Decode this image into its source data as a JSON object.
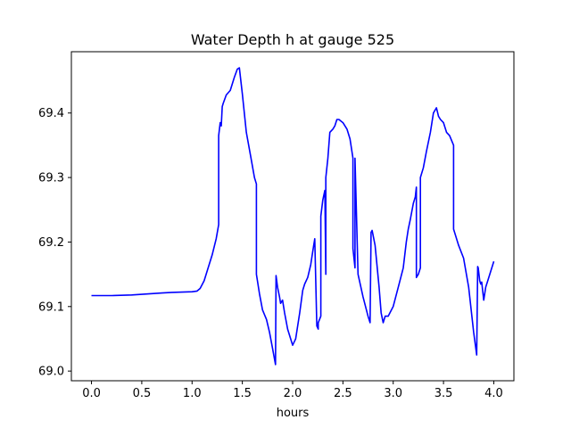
{
  "chart_data": {
    "type": "line",
    "title": "Water Depth h at gauge 525",
    "xlabel": "hours",
    "ylabel": "",
    "xlim": [
      -0.2,
      4.2
    ],
    "ylim": [
      68.985,
      69.495
    ],
    "x_ticks": [
      0.0,
      0.5,
      1.0,
      1.5,
      2.0,
      2.5,
      3.0,
      3.5,
      4.0
    ],
    "x_tick_labels": [
      "0.0",
      "0.5",
      "1.0",
      "1.5",
      "2.0",
      "2.5",
      "3.0",
      "3.5",
      "4.0"
    ],
    "y_ticks": [
      69.0,
      69.1,
      69.2,
      69.3,
      69.4
    ],
    "y_tick_labels": [
      "69.0",
      "69.1",
      "69.2",
      "69.3",
      "69.4"
    ],
    "grid": false,
    "series": [
      {
        "color": "#0000ff",
        "x": [
          0.0,
          0.2,
          0.4,
          0.6,
          0.7,
          0.8,
          1.0,
          1.05,
          1.08,
          1.12,
          1.16,
          1.2,
          1.24,
          1.265,
          1.265,
          1.28,
          1.29,
          1.3,
          1.31,
          1.34,
          1.38,
          1.42,
          1.45,
          1.47,
          1.5,
          1.54,
          1.58,
          1.62,
          1.64,
          1.64,
          1.67,
          1.7,
          1.74,
          1.77,
          1.8,
          1.83,
          1.835,
          1.85,
          1.87,
          1.88,
          1.9,
          1.92,
          1.95,
          2.0,
          2.03,
          2.07,
          2.1,
          2.12,
          2.15,
          2.18,
          2.2,
          2.22,
          2.24,
          2.255,
          2.255,
          2.28,
          2.28,
          2.3,
          2.32,
          2.33,
          2.33,
          2.35,
          2.37,
          2.4,
          2.42,
          2.44,
          2.46,
          2.5,
          2.54,
          2.57,
          2.6,
          2.6,
          2.62,
          2.62,
          2.65,
          2.7,
          2.75,
          2.77,
          2.78,
          2.79,
          2.82,
          2.86,
          2.88,
          2.9,
          2.92,
          2.95,
          3.0,
          3.05,
          3.1,
          3.13,
          3.15,
          3.17,
          3.2,
          3.22,
          3.23,
          3.23,
          3.25,
          3.27,
          3.27,
          3.3,
          3.33,
          3.37,
          3.4,
          3.43,
          3.45,
          3.47,
          3.5,
          3.53,
          3.56,
          3.6,
          3.6,
          3.65,
          3.7,
          3.75,
          3.8,
          3.83,
          3.84,
          3.845,
          3.86,
          3.87,
          3.88,
          3.9,
          3.92,
          3.94,
          3.97,
          4.0
        ],
        "y": [
          69.117,
          69.117,
          69.118,
          69.12,
          69.121,
          69.122,
          69.123,
          69.124,
          69.128,
          69.14,
          69.16,
          69.18,
          69.205,
          69.227,
          69.365,
          69.385,
          69.38,
          69.41,
          69.415,
          69.428,
          69.435,
          69.455,
          69.468,
          69.47,
          69.43,
          69.37,
          69.335,
          69.3,
          69.29,
          69.15,
          69.12,
          69.095,
          69.08,
          69.06,
          69.035,
          69.01,
          69.148,
          69.13,
          69.115,
          69.105,
          69.11,
          69.09,
          69.065,
          69.04,
          69.05,
          69.09,
          69.125,
          69.135,
          69.145,
          69.165,
          69.185,
          69.205,
          69.07,
          69.065,
          69.075,
          69.085,
          69.24,
          69.265,
          69.28,
          69.15,
          69.3,
          69.33,
          69.37,
          69.375,
          69.38,
          69.39,
          69.39,
          69.385,
          69.375,
          69.36,
          69.33,
          69.19,
          69.16,
          69.33,
          69.15,
          69.115,
          69.085,
          69.075,
          69.215,
          69.218,
          69.195,
          69.13,
          69.09,
          69.075,
          69.085,
          69.085,
          69.1,
          69.13,
          69.16,
          69.2,
          69.22,
          69.235,
          69.26,
          69.27,
          69.285,
          69.145,
          69.15,
          69.16,
          69.3,
          69.315,
          69.34,
          69.37,
          69.4,
          69.408,
          69.395,
          69.39,
          69.385,
          69.37,
          69.365,
          69.35,
          69.22,
          69.195,
          69.175,
          69.13,
          69.06,
          69.025,
          69.162,
          69.16,
          69.14,
          69.135,
          69.138,
          69.11,
          69.13,
          69.14,
          69.155,
          69.17
        ]
      }
    ]
  }
}
